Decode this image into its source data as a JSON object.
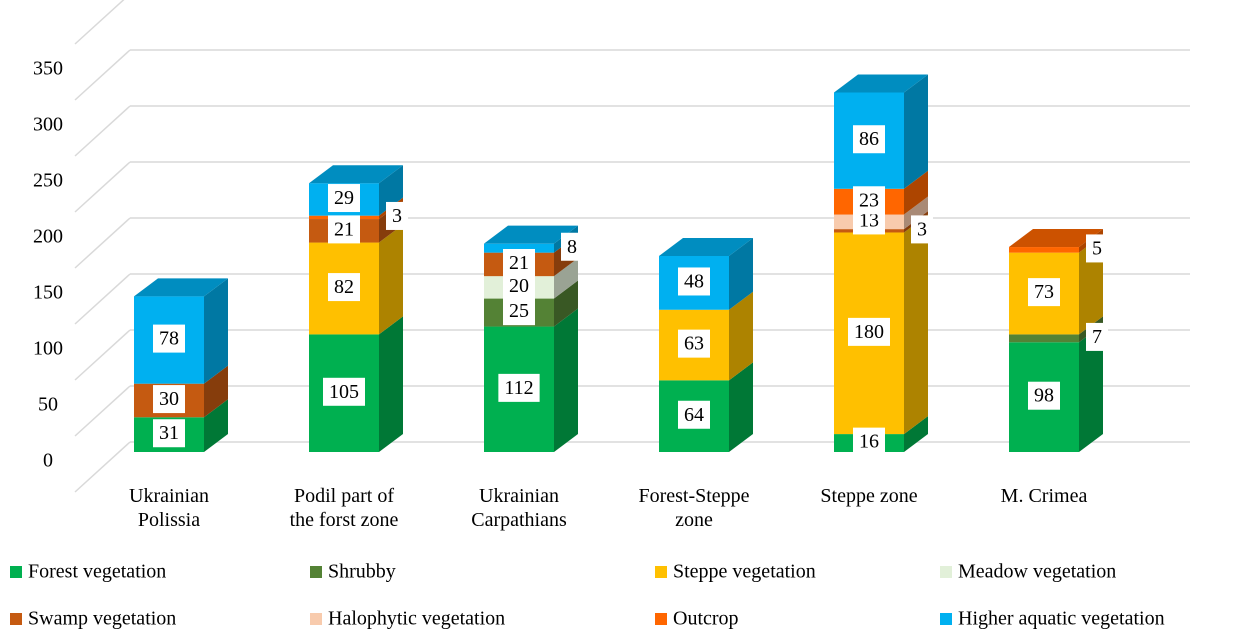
{
  "chart_data": {
    "type": "bar3d_stacked",
    "categories": [
      "Ukrainian\nPolissia",
      "Podil part of\nthe forst zone",
      "Ukrainian\nCarpathians",
      "Forest-Steppe\nzone",
      "Steppe zone",
      "M. Crimea"
    ],
    "series": [
      {
        "name": "Forest vegetation",
        "color": "#00b050",
        "values": [
          31,
          105,
          112,
          64,
          16,
          98
        ]
      },
      {
        "name": "Shrubby",
        "color": "#548235",
        "values": [
          null,
          null,
          25,
          null,
          null,
          7
        ]
      },
      {
        "name": "Steppe vegetation",
        "color": "#ffc000",
        "values": [
          null,
          82,
          null,
          63,
          180,
          73
        ]
      },
      {
        "name": "Meadow vegetation",
        "color": "#e2f0d9",
        "values": [
          null,
          null,
          20,
          null,
          null,
          null
        ]
      },
      {
        "name": "Swamp vegetation",
        "color": "#c55a11",
        "values": [
          30,
          21,
          21,
          null,
          3,
          null
        ]
      },
      {
        "name": "Halophytic vegetation",
        "color": "#f8cbad",
        "values": [
          null,
          null,
          null,
          null,
          13,
          null
        ]
      },
      {
        "name": "Outcrop",
        "color": "#ff6600",
        "values": [
          null,
          3,
          null,
          null,
          23,
          5
        ]
      },
      {
        "name": "Higher aquatic vegetation",
        "color": "#00b0f0",
        "values": [
          78,
          29,
          8,
          48,
          86,
          null
        ]
      }
    ],
    "ylim": [
      0,
      400
    ],
    "yticks": [
      0,
      50,
      100,
      150,
      200,
      250,
      300,
      350
    ],
    "grid": true,
    "legend": "bottom"
  }
}
